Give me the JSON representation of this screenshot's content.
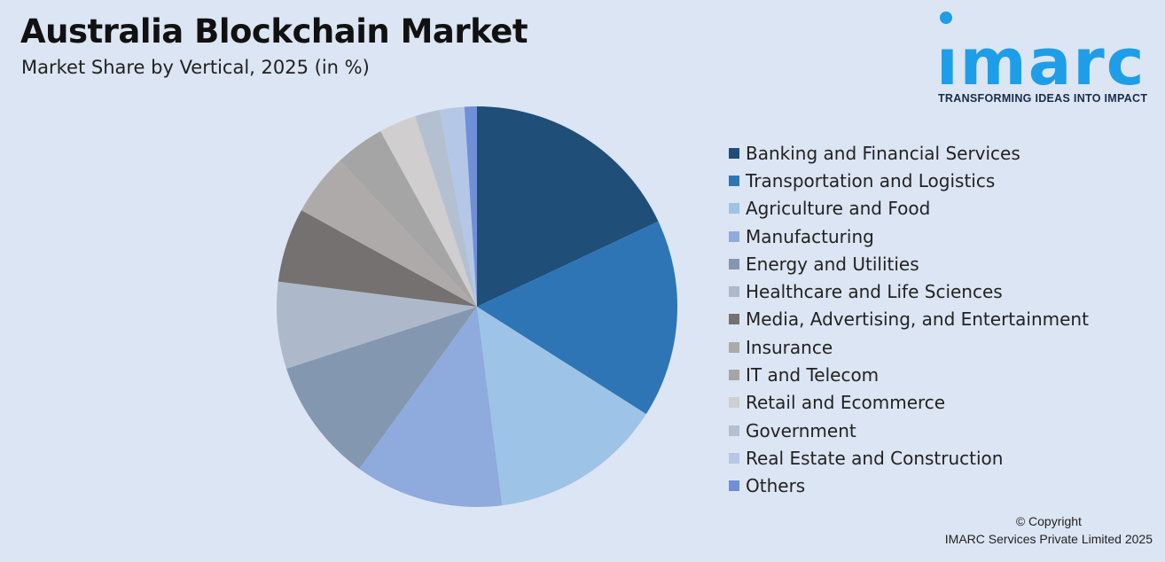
{
  "header": {
    "title": "Australia Blockchain Market",
    "subtitle": "Market Share by Vertical, 2025 (in %)"
  },
  "logo": {
    "word": "ımarc",
    "tagline": "TRANSFORMING IDEAS INTO IMPACT",
    "color": "#1e9ee8"
  },
  "chart_data": {
    "type": "pie",
    "title": "Australia Blockchain Market",
    "subtitle": "Market Share by Vertical, 2025 (in %)",
    "legend_position": "right",
    "start_angle": "12 o'clock, clockwise",
    "slices": [
      {
        "label": "Banking and Financial Services",
        "value": 18.0,
        "color": "#1f4e79"
      },
      {
        "label": "Transportation and Logistics",
        "value": 16.0,
        "color": "#2e75b6"
      },
      {
        "label": "Agriculture and Food",
        "value": 14.0,
        "color": "#9dc3e6"
      },
      {
        "label": "Manufacturing",
        "value": 12.0,
        "color": "#8faadc"
      },
      {
        "label": "Energy and Utilities",
        "value": 10.0,
        "color": "#8497b0"
      },
      {
        "label": "Healthcare and Life Sciences",
        "value": 7.0,
        "color": "#adb9ca"
      },
      {
        "label": "Media, Advertising, and Entertainment",
        "value": 6.0,
        "color": "#767171"
      },
      {
        "label": "Insurance",
        "value": 5.0,
        "color": "#aeaaaa"
      },
      {
        "label": "IT and Telecom",
        "value": 4.0,
        "color": "#a5a5a5"
      },
      {
        "label": "Retail and Ecommerce",
        "value": 3.0,
        "color": "#d0cece"
      },
      {
        "label": "Government",
        "value": 2.0,
        "color": "#b4c0d0"
      },
      {
        "label": "Real Estate and Construction",
        "value": 2.0,
        "color": "#b4c7e7"
      },
      {
        "label": "Others",
        "value": 1.0,
        "color": "#6f8fd6"
      }
    ]
  },
  "footer": {
    "copyright_line1": "© Copyright",
    "copyright_line2": "IMARC Services Private Limited 2025"
  }
}
